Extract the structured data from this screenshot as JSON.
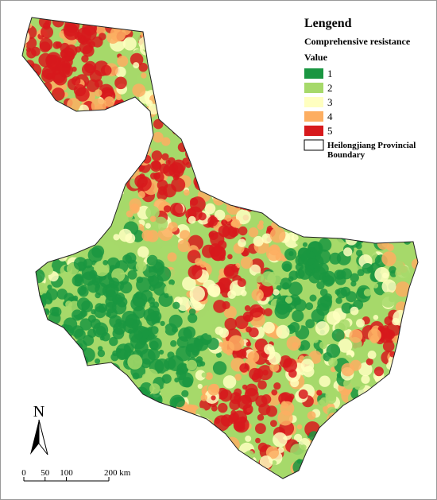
{
  "legend": {
    "title": "Lengend",
    "subtitle": "Comprehensive resistance",
    "value_label": "Value",
    "classes": [
      {
        "label": "1",
        "color": "#1a9641"
      },
      {
        "label": "2",
        "color": "#a6d96a"
      },
      {
        "label": "3",
        "color": "#ffffc0"
      },
      {
        "label": "4",
        "color": "#fdae61"
      },
      {
        "label": "5",
        "color": "#d7191c"
      }
    ],
    "boundary_label": [
      "Heilongjiang Provincial",
      "Boundary"
    ]
  },
  "north_arrow": {
    "label": "N"
  },
  "scale_bar": {
    "ticks": [
      {
        "value": 0,
        "label": "0"
      },
      {
        "value": 50,
        "label": "50"
      },
      {
        "value": 100,
        "label": "100"
      },
      {
        "value": 200,
        "label": "200 km"
      }
    ]
  }
}
